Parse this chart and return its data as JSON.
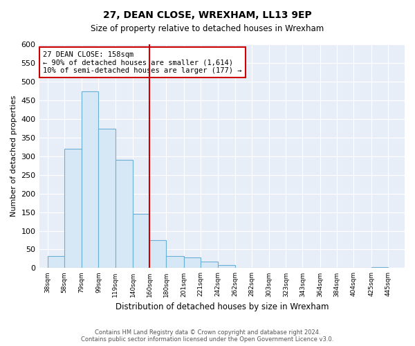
{
  "title": "27, DEAN CLOSE, WREXHAM, LL13 9EP",
  "subtitle": "Size of property relative to detached houses in Wrexham",
  "xlabel": "Distribution of detached houses by size in Wrexham",
  "ylabel": "Number of detached properties",
  "bar_left_edges": [
    38,
    58,
    79,
    99,
    119,
    140,
    160,
    180,
    201,
    221,
    242,
    262,
    282,
    303,
    323,
    343,
    364,
    384,
    404,
    425
  ],
  "bar_heights": [
    32,
    320,
    473,
    373,
    291,
    145,
    75,
    32,
    29,
    17,
    8,
    1,
    0,
    0,
    0,
    0,
    0,
    0,
    0,
    2
  ],
  "bar_widths": [
    20,
    21,
    20,
    20,
    21,
    20,
    20,
    21,
    20,
    21,
    20,
    20,
    21,
    20,
    20,
    21,
    20,
    20,
    21,
    20
  ],
  "bar_color": "#d6e8f5",
  "bar_edgecolor": "#6aafd4",
  "reference_line_x": 160,
  "reference_line_color": "#cc0000",
  "annotation_title": "27 DEAN CLOSE: 158sqm",
  "annotation_line1": "← 90% of detached houses are smaller (1,614)",
  "annotation_line2": "10% of semi-detached houses are larger (177) →",
  "annotation_box_edgecolor": "#cc0000",
  "x_tick_labels": [
    "38sqm",
    "58sqm",
    "79sqm",
    "99sqm",
    "119sqm",
    "140sqm",
    "160sqm",
    "180sqm",
    "201sqm",
    "221sqm",
    "242sqm",
    "262sqm",
    "282sqm",
    "303sqm",
    "323sqm",
    "343sqm",
    "364sqm",
    "384sqm",
    "404sqm",
    "425sqm",
    "445sqm"
  ],
  "x_tick_positions": [
    38,
    58,
    79,
    99,
    119,
    140,
    160,
    180,
    201,
    221,
    242,
    262,
    282,
    303,
    323,
    343,
    364,
    384,
    404,
    425,
    445
  ],
  "ylim": [
    0,
    600
  ],
  "xlim": [
    28,
    465
  ],
  "yticks": [
    0,
    50,
    100,
    150,
    200,
    250,
    300,
    350,
    400,
    450,
    500,
    550,
    600
  ],
  "footer_line1": "Contains HM Land Registry data © Crown copyright and database right 2024.",
  "footer_line2": "Contains public sector information licensed under the Open Government Licence v3.0.",
  "bg_color": "#ffffff",
  "plot_bg_color": "#e8eef8",
  "grid_color": "#ffffff"
}
